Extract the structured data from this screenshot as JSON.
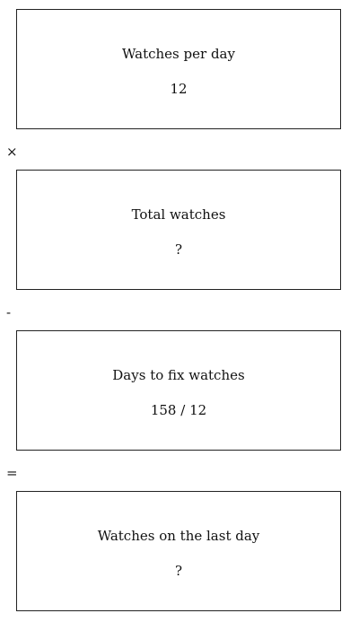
{
  "boxes": [
    {
      "label": "Watches per day",
      "value": "12"
    },
    {
      "label": "Total watches",
      "value": "?"
    },
    {
      "label": "Days to fix watches",
      "value": "158 / 12"
    },
    {
      "label": "Watches on the last day",
      "value": "?"
    }
  ],
  "operators": [
    "×",
    "-",
    "="
  ]
}
